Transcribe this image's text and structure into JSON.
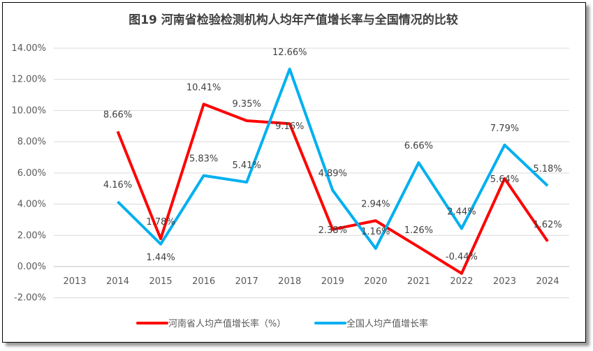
{
  "chart_data": {
    "type": "line",
    "title": "图19   河南省检验检测机构人均年产值增长率与全国情况的比较",
    "categories": [
      "2013",
      "2014",
      "2015",
      "2016",
      "2017",
      "2018",
      "2019",
      "2020",
      "2021",
      "2022",
      "2023",
      "2024"
    ],
    "ylim": [
      -2,
      14
    ],
    "yticks": [
      "-2.00%",
      "0.00%",
      "2.00%",
      "4.00%",
      "6.00%",
      "8.00%",
      "10.00%",
      "12.00%",
      "14.00%"
    ],
    "grid": true,
    "legend": "bottom",
    "series": [
      {
        "name": "河南省人均产值增长率（%）",
        "color": "#FF0000",
        "values": [
          null,
          8.66,
          1.78,
          10.41,
          9.35,
          9.16,
          2.38,
          2.94,
          1.26,
          -0.44,
          5.64,
          1.62
        ],
        "labels": [
          "",
          "8.66%",
          "1.78%",
          "10.41%",
          "9.35%",
          "9.16%",
          "2.38%",
          "2.94%",
          "1.26%",
          "-0.44%",
          "5.64%",
          "1.62%"
        ]
      },
      {
        "name": "全国人均产值增长率",
        "color": "#00B0F0",
        "values": [
          null,
          4.16,
          1.44,
          5.83,
          5.41,
          12.66,
          4.89,
          1.16,
          6.66,
          2.44,
          7.79,
          5.18
        ],
        "labels": [
          "",
          "4.16%",
          "1.44%",
          "5.83%",
          "5.41%",
          "12.66%",
          "4.89%",
          "1.16%",
          "6.66%",
          "2.44%",
          "7.79%",
          "5.18%"
        ]
      }
    ]
  }
}
